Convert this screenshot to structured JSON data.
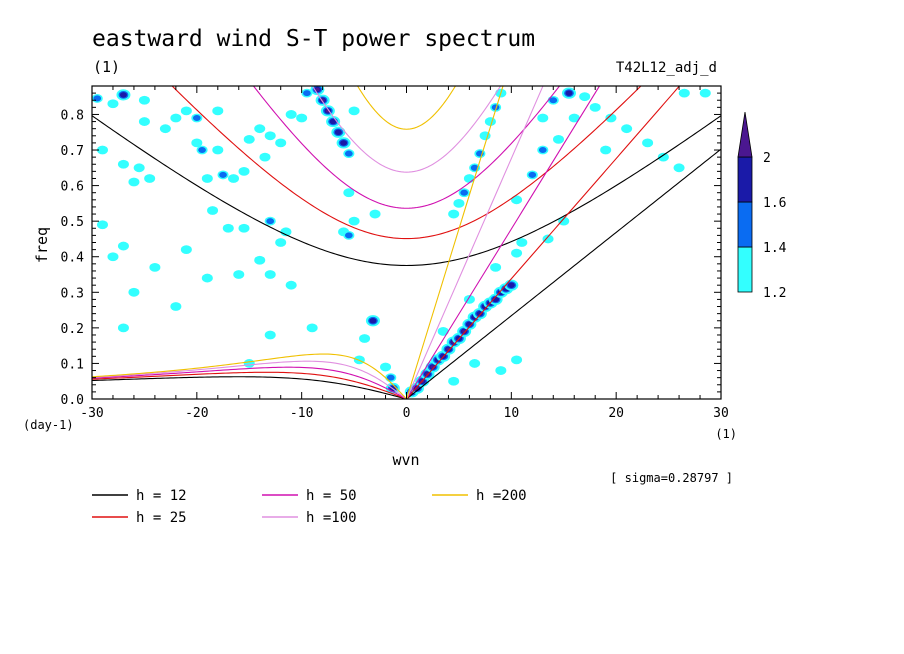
{
  "chart_data": {
    "type": "heatmap",
    "title": "eastward wind S-T power spectrum",
    "subtitle_left": "(1)",
    "subtitle_right": "T42L12_adj_d",
    "xlabel": "wvn",
    "ylabel": "freq",
    "x_unit": "(1)",
    "y_unit": "(day-1)",
    "xlim": [
      -30,
      30
    ],
    "ylim": [
      0,
      0.88
    ],
    "x_ticks": [
      -30,
      -20,
      -10,
      0,
      10,
      20,
      30
    ],
    "x_tick_labels": [
      "-30",
      "-20",
      "-10",
      "0",
      "10",
      "20",
      "30"
    ],
    "y_ticks": [
      0,
      0.1,
      0.2,
      0.3,
      0.4,
      0.5,
      0.6,
      0.7,
      0.8
    ],
    "y_tick_labels": [
      "0.0",
      "0.1",
      "0.2",
      "0.3",
      "0.4",
      "0.5",
      "0.6",
      "0.7",
      "0.8"
    ],
    "sigma_note": "[ sigma=0.28797 ]",
    "colorbar": {
      "levels": [
        1.2,
        1.4,
        1.6,
        2
      ],
      "labels": [
        "1.2",
        "1.4",
        "1.6",
        "2"
      ],
      "colors": [
        "#33ffff",
        "#0a6cf2",
        "#1a1aa8",
        "#4b1790"
      ]
    },
    "dispersion_curves": [
      {
        "name": "h = 12",
        "h": 12,
        "color": "#000000"
      },
      {
        "name": "h = 25",
        "h": 25,
        "color": "#e01010"
      },
      {
        "name": "h = 50",
        "h": 50,
        "color": "#d010b0"
      },
      {
        "name": "h =100",
        "h": 100,
        "color": "#e090e0"
      },
      {
        "name": "h =200",
        "h": 200,
        "color": "#f0c000"
      }
    ],
    "power_blobs": [
      {
        "k": -29.5,
        "f": 0.845,
        "v": 1.5
      },
      {
        "k": -28,
        "f": 0.83,
        "v": 1.3
      },
      {
        "k": -27,
        "f": 0.855,
        "v": 1.7
      },
      {
        "k": -25,
        "f": 0.84,
        "v": 1.3
      },
      {
        "k": -29,
        "f": 0.7,
        "v": 1.3
      },
      {
        "k": -27,
        "f": 0.66,
        "v": 1.3
      },
      {
        "k": -25.5,
        "f": 0.65,
        "v": 1.3
      },
      {
        "k": -26,
        "f": 0.61,
        "v": 1.3
      },
      {
        "k": -24.5,
        "f": 0.62,
        "v": 1.3
      },
      {
        "k": -29,
        "f": 0.49,
        "v": 1.3
      },
      {
        "k": -27,
        "f": 0.43,
        "v": 1.3
      },
      {
        "k": -28,
        "f": 0.4,
        "v": 1.3
      },
      {
        "k": -25,
        "f": 0.78,
        "v": 1.3
      },
      {
        "k": -23,
        "f": 0.76,
        "v": 1.3
      },
      {
        "k": -22,
        "f": 0.79,
        "v": 1.3
      },
      {
        "k": -21,
        "f": 0.81,
        "v": 1.3
      },
      {
        "k": -20,
        "f": 0.79,
        "v": 1.5
      },
      {
        "k": -18,
        "f": 0.81,
        "v": 1.3
      },
      {
        "k": -20,
        "f": 0.72,
        "v": 1.3
      },
      {
        "k": -19.5,
        "f": 0.7,
        "v": 1.5
      },
      {
        "k": -18,
        "f": 0.7,
        "v": 1.3
      },
      {
        "k": -19,
        "f": 0.62,
        "v": 1.3
      },
      {
        "k": -17.5,
        "f": 0.63,
        "v": 1.5
      },
      {
        "k": -16.5,
        "f": 0.62,
        "v": 1.3
      },
      {
        "k": -15.5,
        "f": 0.64,
        "v": 1.3
      },
      {
        "k": -15,
        "f": 0.73,
        "v": 1.3
      },
      {
        "k": -14,
        "f": 0.76,
        "v": 1.3
      },
      {
        "k": -13,
        "f": 0.74,
        "v": 1.3
      },
      {
        "k": -12,
        "f": 0.72,
        "v": 1.3
      },
      {
        "k": -13.5,
        "f": 0.68,
        "v": 1.3
      },
      {
        "k": -18.5,
        "f": 0.53,
        "v": 1.3
      },
      {
        "k": -17,
        "f": 0.48,
        "v": 1.3
      },
      {
        "k": -15.5,
        "f": 0.48,
        "v": 1.3
      },
      {
        "k": -13,
        "f": 0.5,
        "v": 1.5
      },
      {
        "k": -11.5,
        "f": 0.47,
        "v": 1.3
      },
      {
        "k": -12,
        "f": 0.44,
        "v": 1.3
      },
      {
        "k": -8.5,
        "f": 0.87,
        "v": 2.2
      },
      {
        "k": -8,
        "f": 0.84,
        "v": 2.2
      },
      {
        "k": -7.5,
        "f": 0.81,
        "v": 2.0
      },
      {
        "k": -7,
        "f": 0.78,
        "v": 1.8
      },
      {
        "k": -6.5,
        "f": 0.75,
        "v": 1.8
      },
      {
        "k": -6,
        "f": 0.72,
        "v": 1.6
      },
      {
        "k": -5.5,
        "f": 0.69,
        "v": 1.5
      },
      {
        "k": -9.5,
        "f": 0.86,
        "v": 1.5
      },
      {
        "k": -5,
        "f": 0.81,
        "v": 1.3
      },
      {
        "k": -10,
        "f": 0.79,
        "v": 1.3
      },
      {
        "k": -11,
        "f": 0.8,
        "v": 1.3
      },
      {
        "k": -5.5,
        "f": 0.58,
        "v": 1.3
      },
      {
        "k": -5,
        "f": 0.5,
        "v": 1.3
      },
      {
        "k": -6,
        "f": 0.47,
        "v": 1.3
      },
      {
        "k": -5.5,
        "f": 0.46,
        "v": 1.5
      },
      {
        "k": -3,
        "f": 0.52,
        "v": 1.3
      },
      {
        "k": -21,
        "f": 0.42,
        "v": 1.3
      },
      {
        "k": -19,
        "f": 0.34,
        "v": 1.3
      },
      {
        "k": -16,
        "f": 0.35,
        "v": 1.3
      },
      {
        "k": -14,
        "f": 0.39,
        "v": 1.3
      },
      {
        "k": -13,
        "f": 0.35,
        "v": 1.3
      },
      {
        "k": -11,
        "f": 0.32,
        "v": 1.3
      },
      {
        "k": -24,
        "f": 0.37,
        "v": 1.3
      },
      {
        "k": -26,
        "f": 0.3,
        "v": 1.3
      },
      {
        "k": -22,
        "f": 0.26,
        "v": 1.3
      },
      {
        "k": -13,
        "f": 0.18,
        "v": 1.3
      },
      {
        "k": -9,
        "f": 0.2,
        "v": 1.3
      },
      {
        "k": -15,
        "f": 0.1,
        "v": 1.3
      },
      {
        "k": -27,
        "f": 0.2,
        "v": 1.3
      },
      {
        "k": -3.2,
        "f": 0.22,
        "v": 1.6
      },
      {
        "k": -4,
        "f": 0.17,
        "v": 1.3
      },
      {
        "k": -4.5,
        "f": 0.11,
        "v": 1.3
      },
      {
        "k": -1.5,
        "f": 0.06,
        "v": 1.5
      },
      {
        "k": -1.3,
        "f": 0.03,
        "v": 1.8
      },
      {
        "k": -2,
        "f": 0.09,
        "v": 1.3
      },
      {
        "k": 0.5,
        "f": 0.02,
        "v": 1.8
      },
      {
        "k": 1,
        "f": 0.03,
        "v": 2.0
      },
      {
        "k": 1.5,
        "f": 0.05,
        "v": 2.0
      },
      {
        "k": 2,
        "f": 0.07,
        "v": 2.0
      },
      {
        "k": 2.5,
        "f": 0.09,
        "v": 2.0
      },
      {
        "k": 3,
        "f": 0.11,
        "v": 1.8
      },
      {
        "k": 3.5,
        "f": 0.12,
        "v": 1.8
      },
      {
        "k": 4,
        "f": 0.14,
        "v": 2.0
      },
      {
        "k": 4.5,
        "f": 0.16,
        "v": 2.0
      },
      {
        "k": 5,
        "f": 0.17,
        "v": 1.8
      },
      {
        "k": 5.5,
        "f": 0.19,
        "v": 2.0
      },
      {
        "k": 6,
        "f": 0.21,
        "v": 1.8
      },
      {
        "k": 6.5,
        "f": 0.23,
        "v": 1.8
      },
      {
        "k": 7,
        "f": 0.24,
        "v": 1.8
      },
      {
        "k": 7.5,
        "f": 0.26,
        "v": 1.8
      },
      {
        "k": 8,
        "f": 0.27,
        "v": 1.6
      },
      {
        "k": 8.5,
        "f": 0.28,
        "v": 1.6
      },
      {
        "k": 9,
        "f": 0.3,
        "v": 1.8
      },
      {
        "k": 9.5,
        "f": 0.31,
        "v": 1.8
      },
      {
        "k": 10,
        "f": 0.32,
        "v": 1.6
      },
      {
        "k": 3.5,
        "f": 0.19,
        "v": 1.3
      },
      {
        "k": 6,
        "f": 0.28,
        "v": 1.3
      },
      {
        "k": 8.5,
        "f": 0.37,
        "v": 1.3
      },
      {
        "k": 10.5,
        "f": 0.41,
        "v": 1.3
      },
      {
        "k": 11,
        "f": 0.44,
        "v": 1.3
      },
      {
        "k": 13.5,
        "f": 0.45,
        "v": 1.3
      },
      {
        "k": 15,
        "f": 0.5,
        "v": 1.3
      },
      {
        "k": 9,
        "f": 0.08,
        "v": 1.3
      },
      {
        "k": 4.5,
        "f": 0.05,
        "v": 1.3
      },
      {
        "k": 6.5,
        "f": 0.1,
        "v": 1.3
      },
      {
        "k": 4.5,
        "f": 0.52,
        "v": 1.3
      },
      {
        "k": 5,
        "f": 0.55,
        "v": 1.3
      },
      {
        "k": 5.5,
        "f": 0.58,
        "v": 1.5
      },
      {
        "k": 6.5,
        "f": 0.65,
        "v": 1.5
      },
      {
        "k": 7,
        "f": 0.69,
        "v": 1.5
      },
      {
        "k": 7.5,
        "f": 0.74,
        "v": 1.3
      },
      {
        "k": 8,
        "f": 0.78,
        "v": 1.3
      },
      {
        "k": 8.5,
        "f": 0.82,
        "v": 1.5
      },
      {
        "k": 9,
        "f": 0.86,
        "v": 1.3
      },
      {
        "k": 6,
        "f": 0.62,
        "v": 1.3
      },
      {
        "k": 10.5,
        "f": 0.56,
        "v": 1.3
      },
      {
        "k": 12,
        "f": 0.63,
        "v": 1.5
      },
      {
        "k": 13,
        "f": 0.7,
        "v": 1.5
      },
      {
        "k": 14.5,
        "f": 0.73,
        "v": 1.3
      },
      {
        "k": 13,
        "f": 0.79,
        "v": 1.3
      },
      {
        "k": 16,
        "f": 0.79,
        "v": 1.3
      },
      {
        "k": 14,
        "f": 0.84,
        "v": 1.5
      },
      {
        "k": 15.5,
        "f": 0.86,
        "v": 1.8
      },
      {
        "k": 17,
        "f": 0.85,
        "v": 1.3
      },
      {
        "k": 18,
        "f": 0.82,
        "v": 1.3
      },
      {
        "k": 19.5,
        "f": 0.79,
        "v": 1.3
      },
      {
        "k": 21,
        "f": 0.76,
        "v": 1.3
      },
      {
        "k": 23,
        "f": 0.72,
        "v": 1.3
      },
      {
        "k": 24.5,
        "f": 0.68,
        "v": 1.3
      },
      {
        "k": 26,
        "f": 0.65,
        "v": 1.3
      },
      {
        "k": 19,
        "f": 0.7,
        "v": 1.3
      },
      {
        "k": 26.5,
        "f": 0.86,
        "v": 1.3
      },
      {
        "k": 28.5,
        "f": 0.86,
        "v": 1.3
      },
      {
        "k": 10.5,
        "f": 0.11,
        "v": 1.3
      }
    ]
  }
}
